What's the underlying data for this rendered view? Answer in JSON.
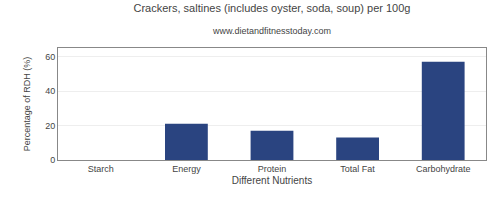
{
  "chart_data": {
    "type": "bar",
    "title": "Crackers, saltines (includes oyster, soda, soup) per 100g",
    "subtitle": "www.dietandfitnesstoday.com",
    "xlabel": "Different Nutrients",
    "ylabel": "Percentage of RDH (%)",
    "categories": [
      "Starch",
      "Energy",
      "Protein",
      "Total Fat",
      "Carbohydrate"
    ],
    "values": [
      0,
      21,
      17,
      13,
      57
    ],
    "color": "#2a4480",
    "ylim": [
      0,
      65
    ],
    "yticks": [
      0,
      20,
      40,
      60
    ],
    "grid": true
  }
}
